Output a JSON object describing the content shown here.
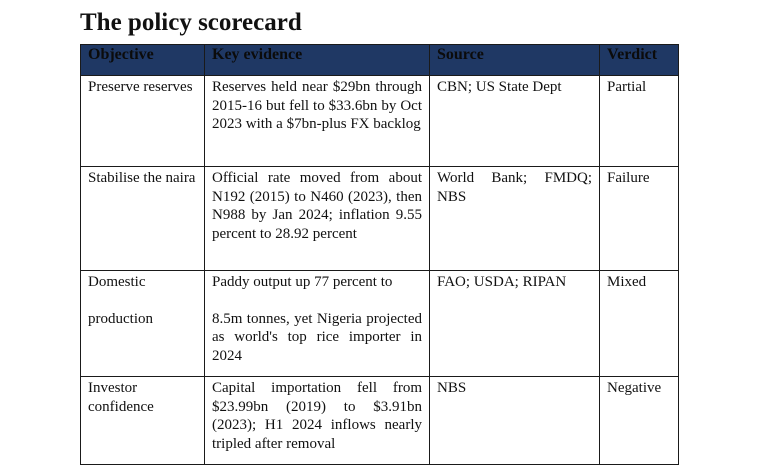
{
  "title": "The policy scorecard",
  "colors": {
    "header_bg": "#1f3864",
    "border": "#1a1a1a",
    "text": "#111111"
  },
  "table": {
    "headers": [
      "Objective",
      "Key evidence",
      "Source",
      "Verdict"
    ],
    "rows": [
      {
        "objective": "Preserve reserves",
        "evidence": "Reserves held near $29bn through 2015-16 but fell to $33.6bn by Oct 2023 with a $7bn-plus FX backlog",
        "source": "CBN; US State Dept",
        "verdict": "Partial"
      },
      {
        "objective": "Stabilise the naira",
        "evidence": "Official rate moved from about N192 (2015) to N460 (2023), then N988 by Jan 2024; inflation 9.55 percent to 28.92 percent",
        "source": "World Bank; FMDQ; NBS",
        "verdict": "Failure"
      },
      {
        "objective_line1": "Domestic",
        "objective_line2": "production",
        "evidence_line1": "Paddy output up 77 percent to",
        "evidence_line2": "8.5m tonnes, yet Nigeria projected as world's top rice importer in 2024",
        "source": "FAO; USDA; RIPAN",
        "verdict": "Mixed"
      },
      {
        "objective": "Investor confidence",
        "evidence": "Capital importation fell from $23.99bn (2019) to $3.91bn (2023); H1 2024 inflows nearly tripled after removal",
        "source": "NBS",
        "verdict": "Negative"
      }
    ]
  }
}
